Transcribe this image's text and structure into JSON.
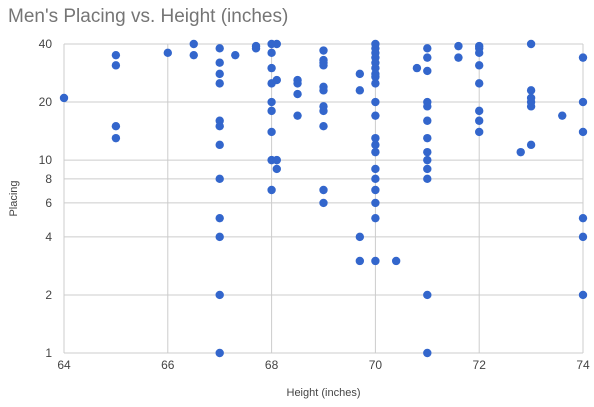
{
  "chart_data": {
    "type": "scatter",
    "title": "Men's Placing vs. Height (inches)",
    "xlabel": "Height (inches)",
    "ylabel": "Placing",
    "xlim": [
      64,
      74
    ],
    "ylim": [
      1,
      40
    ],
    "yscale": "log",
    "grid": true,
    "legend": "none",
    "xticks": [
      "64",
      "66",
      "68",
      "70",
      "72",
      "74"
    ],
    "yticks": [
      "1",
      "2",
      "4",
      "6",
      "8",
      "10",
      "20",
      "40"
    ],
    "color": "#3366cc",
    "points": [
      [
        64,
        21
      ],
      [
        65,
        35
      ],
      [
        65,
        31
      ],
      [
        65,
        15
      ],
      [
        65,
        13
      ],
      [
        66,
        36
      ],
      [
        66.5,
        40
      ],
      [
        66.5,
        35
      ],
      [
        67,
        38
      ],
      [
        67,
        32
      ],
      [
        67,
        28
      ],
      [
        67,
        25
      ],
      [
        67,
        16
      ],
      [
        67,
        15
      ],
      [
        67,
        12
      ],
      [
        67,
        8
      ],
      [
        67,
        5
      ],
      [
        67,
        4
      ],
      [
        67,
        2
      ],
      [
        67,
        1
      ],
      [
        67.3,
        35
      ],
      [
        67.7,
        39
      ],
      [
        67.7,
        38
      ],
      [
        68,
        40
      ],
      [
        68,
        36
      ],
      [
        68,
        30
      ],
      [
        68,
        25
      ],
      [
        68,
        20
      ],
      [
        68,
        18
      ],
      [
        68,
        14
      ],
      [
        68,
        10
      ],
      [
        68,
        7
      ],
      [
        68.1,
        40
      ],
      [
        68.1,
        26
      ],
      [
        68.1,
        10
      ],
      [
        68.1,
        9
      ],
      [
        68.5,
        26
      ],
      [
        68.5,
        25
      ],
      [
        68.5,
        22
      ],
      [
        68.5,
        17
      ],
      [
        69,
        37
      ],
      [
        69,
        33
      ],
      [
        69,
        32
      ],
      [
        69,
        31
      ],
      [
        69,
        24
      ],
      [
        69,
        23
      ],
      [
        69,
        19
      ],
      [
        69,
        18
      ],
      [
        69,
        15
      ],
      [
        69,
        7
      ],
      [
        69,
        6
      ],
      [
        69.7,
        28
      ],
      [
        69.7,
        23
      ],
      [
        69.7,
        4
      ],
      [
        69.7,
        3
      ],
      [
        70,
        40
      ],
      [
        70,
        38
      ],
      [
        70,
        36
      ],
      [
        70,
        34
      ],
      [
        70,
        32
      ],
      [
        70,
        30
      ],
      [
        70,
        28
      ],
      [
        70,
        27
      ],
      [
        70,
        25
      ],
      [
        70,
        20
      ],
      [
        70,
        17
      ],
      [
        70,
        13
      ],
      [
        70,
        12
      ],
      [
        70,
        11
      ],
      [
        70,
        9
      ],
      [
        70,
        8
      ],
      [
        70,
        7
      ],
      [
        70,
        6
      ],
      [
        70,
        5
      ],
      [
        70,
        3
      ],
      [
        70.4,
        3
      ],
      [
        70.8,
        30
      ],
      [
        71,
        38
      ],
      [
        71,
        34
      ],
      [
        71,
        29
      ],
      [
        71,
        20
      ],
      [
        71,
        19
      ],
      [
        71,
        16
      ],
      [
        71,
        13
      ],
      [
        71,
        11
      ],
      [
        71,
        10
      ],
      [
        71,
        9
      ],
      [
        71,
        8
      ],
      [
        71,
        2
      ],
      [
        71,
        1
      ],
      [
        71.6,
        39
      ],
      [
        71.6,
        34
      ],
      [
        72,
        39
      ],
      [
        72,
        38
      ],
      [
        72,
        36
      ],
      [
        72,
        31
      ],
      [
        72,
        25
      ],
      [
        72,
        18
      ],
      [
        72,
        16
      ],
      [
        72,
        14
      ],
      [
        72.8,
        11
      ],
      [
        73,
        40
      ],
      [
        73,
        23
      ],
      [
        73,
        21
      ],
      [
        73,
        20
      ],
      [
        73,
        19
      ],
      [
        73,
        12
      ],
      [
        73.6,
        17
      ],
      [
        74,
        34
      ],
      [
        74,
        20
      ],
      [
        74,
        14
      ],
      [
        74,
        5
      ],
      [
        74,
        4
      ],
      [
        74,
        2
      ]
    ]
  }
}
